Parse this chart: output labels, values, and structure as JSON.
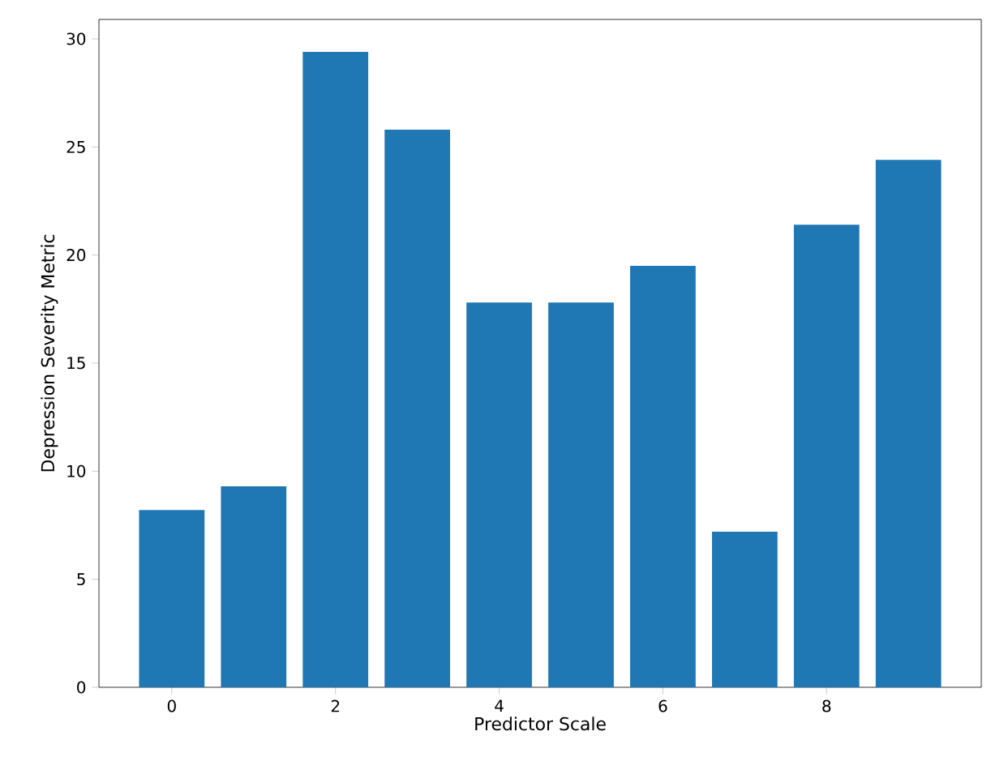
{
  "chart_data": {
    "type": "bar",
    "xlabel": "Predictor Scale",
    "ylabel": "Depression Severity Metric",
    "x": [
      0,
      1,
      2,
      3,
      4,
      5,
      6,
      7,
      8,
      9
    ],
    "values": [
      8.2,
      9.3,
      29.4,
      25.8,
      17.8,
      17.8,
      19.5,
      7.2,
      21.4,
      24.4
    ],
    "color": "#1f77b4",
    "xlim": [
      -0.89,
      9.89
    ],
    "xticks": [
      0,
      2,
      4,
      6,
      8
    ],
    "ylim": [
      0,
      30.9
    ],
    "yticks": [
      0,
      5,
      10,
      15,
      20,
      25,
      30
    ]
  }
}
